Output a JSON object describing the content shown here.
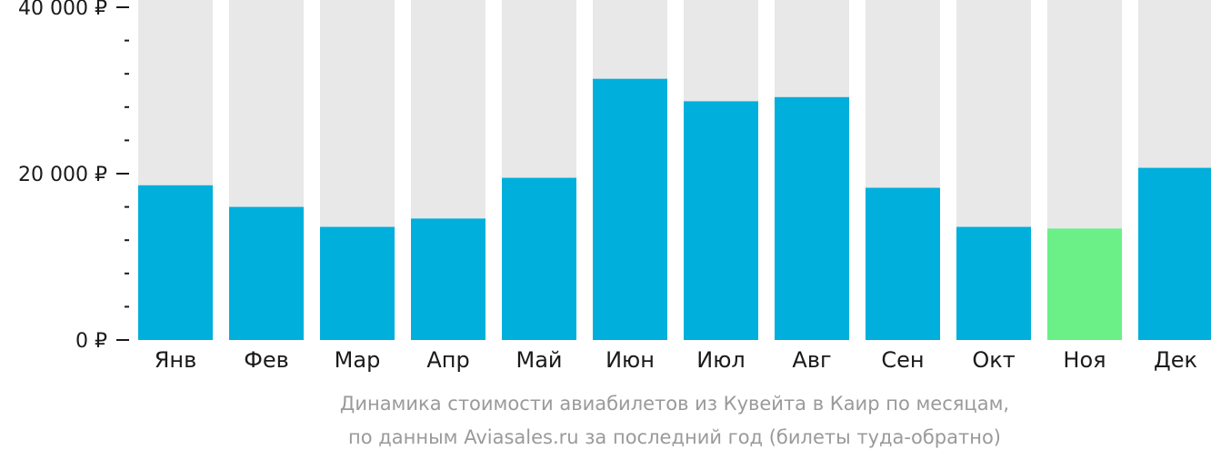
{
  "chart_data": {
    "type": "bar",
    "categories": [
      "Янв",
      "Фев",
      "Мар",
      "Апр",
      "Май",
      "Июн",
      "Июл",
      "Авг",
      "Сен",
      "Окт",
      "Ноя",
      "Дек"
    ],
    "values": [
      18600,
      16000,
      13600,
      14600,
      19500,
      31400,
      28700,
      29200,
      18300,
      13600,
      13400,
      20700
    ],
    "ylim": [
      0,
      40000
    ],
    "y_ticks": [
      {
        "value": 0,
        "label": "0 ₽"
      },
      {
        "value": 20000,
        "label": "20 000 ₽"
      },
      {
        "value": 40000,
        "label": "40 000 ₽"
      }
    ],
    "y_minor_step": 4000,
    "highlight_index": 10,
    "colors": {
      "bar": "#00afdb",
      "bar_highlight": "#6af087",
      "background_bar": "#e8e8e9",
      "axis": "#1a1a1a",
      "caption": "#9a9a9a"
    },
    "grid": false,
    "legend": "none",
    "caption_lines": [
      "Динамика стоимости авиабилетов из Кувейта в Каир по месяцам,",
      "по данным Aviasales.ru за последний год (билеты туда-обратно)"
    ]
  }
}
